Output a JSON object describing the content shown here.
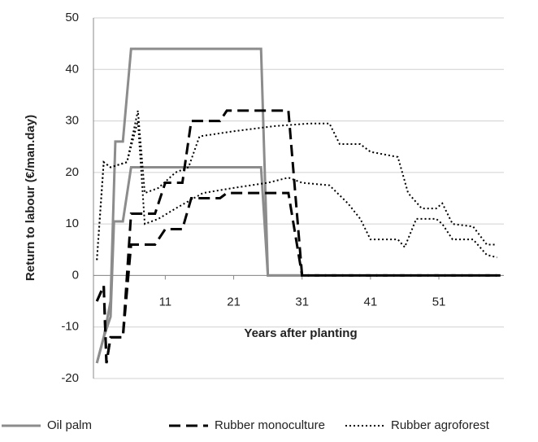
{
  "chart_data": {
    "type": "line",
    "y_label": "Return to labour (€/man.day)",
    "x_label": "Years after planting",
    "xlim": [
      0.5,
      60.5
    ],
    "xticks": [
      11,
      21,
      31,
      41,
      51
    ],
    "ylim": [
      -20,
      50
    ],
    "yticks": [
      -20,
      -10,
      0,
      10,
      20,
      30,
      40,
      50
    ],
    "grid": true,
    "legend": "bottom",
    "series": [
      {
        "name": "Oil palm",
        "color": "#8c8c8c",
        "style": "solid",
        "lines": [
          {
            "x": [
              1,
              2,
              3,
              3.7,
              4.8,
              6,
              25,
              26,
              31
            ],
            "values": [
              -17,
              -12,
              -5,
              26,
              26,
              44,
              44,
              0,
              0
            ]
          },
          {
            "x": [
              1,
              2,
              3,
              3.5,
              4.8,
              6,
              25,
              26,
              31
            ],
            "values": [
              -17,
              -12,
              -8,
              10.5,
              10.5,
              21,
              21,
              0,
              0
            ]
          }
        ]
      },
      {
        "name": "Rubber monoculture",
        "color": "#000000",
        "style": "dashed",
        "lines": [
          {
            "x": [
              1,
              2,
              2.4,
              3,
              4.8,
              6,
              9.5,
              11,
              13.5,
              14.8,
              19,
              20,
              29,
              31,
              60
            ],
            "values": [
              -5,
              -2,
              -17,
              -12,
              -12,
              12,
              12,
              18,
              18,
              30,
              30,
              32,
              32,
              0,
              0
            ]
          },
          {
            "x": [
              1,
              2,
              2.4,
              3,
              4.8,
              6,
              9.5,
              11,
              13.5,
              14.8,
              19,
              20,
              29,
              31,
              60
            ],
            "values": [
              -5,
              -2,
              -17,
              -12,
              -12,
              6,
              6,
              9,
              9,
              15,
              15,
              16,
              16,
              0,
              0
            ]
          }
        ]
      },
      {
        "name": "Rubber agroforest",
        "color": "#000000",
        "style": "dotted",
        "lines": [
          {
            "x": [
              1,
              2,
              3,
              5.4,
              7,
              8,
              10,
              12.5,
              14.4,
              16,
              21,
              27,
              32,
              35,
              36.5,
              39.5,
              41,
              45,
              46.5,
              48.5,
              50.6,
              51.5,
              53,
              56,
              58,
              59.5
            ],
            "values": [
              3,
              22,
              21,
              22,
              32,
              16,
              17,
              20,
              21,
              27,
              28,
              29,
              29.5,
              29.5,
              25.5,
              25.5,
              24,
              23,
              16,
              13,
              13,
              14,
              10,
              9.5,
              6,
              6
            ]
          },
          {
            "x": [
              1,
              2,
              3,
              5.4,
              7,
              8,
              10,
              12.5,
              16.5,
              21,
              26,
              29,
              31,
              35,
              37.7,
              39.5,
              41,
              45,
              46,
              47.7,
              50.6,
              51.5,
              53,
              56,
              58,
              59.5
            ],
            "values": [
              3,
              22,
              21,
              22,
              30,
              10,
              11,
              13,
              16,
              17,
              18,
              19,
              18,
              17.5,
              14,
              11,
              7,
              7,
              5.5,
              11,
              11,
              10,
              7,
              7,
              4,
              3.5
            ]
          }
        ]
      }
    ]
  }
}
